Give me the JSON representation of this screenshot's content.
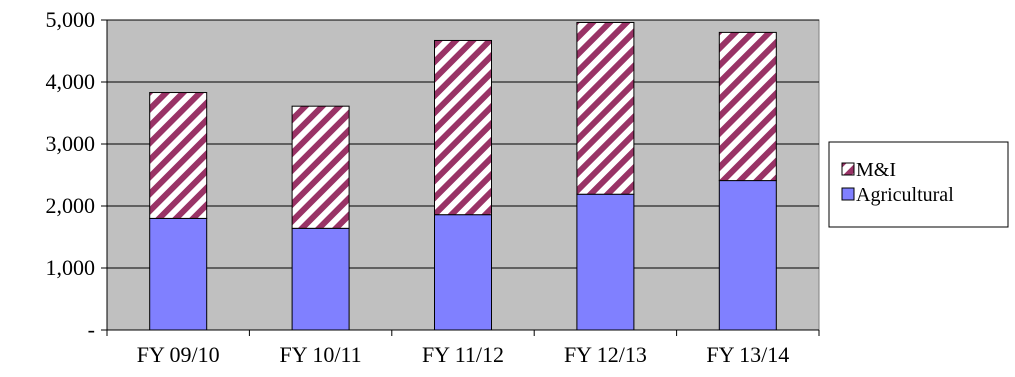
{
  "chart_data": {
    "type": "bar",
    "stacked": true,
    "categories": [
      "FY 09/10",
      "FY 10/11",
      "FY 11/12",
      "FY 12/13",
      "FY 13/14"
    ],
    "series": [
      {
        "name": "Agricultural",
        "values": [
          1800,
          1640,
          1860,
          2190,
          2410
        ],
        "color": "#8080ff",
        "pattern": "solid"
      },
      {
        "name": "M&I",
        "values": [
          2030,
          1970,
          2810,
          2770,
          2390
        ],
        "color": "#993366",
        "pattern": "diagonal-stripes"
      }
    ],
    "ylim": [
      0,
      5000
    ],
    "yticks": [
      0,
      1000,
      2000,
      3000,
      4000,
      5000
    ],
    "ytick_labels": [
      "-",
      "1,000",
      "2,000",
      "3,000",
      "4,000",
      "5,000"
    ],
    "plot_background": "#c0c0c0",
    "grid": true,
    "legend_position": "right",
    "legend_entries": [
      "M&I",
      "Agricultural"
    ]
  }
}
